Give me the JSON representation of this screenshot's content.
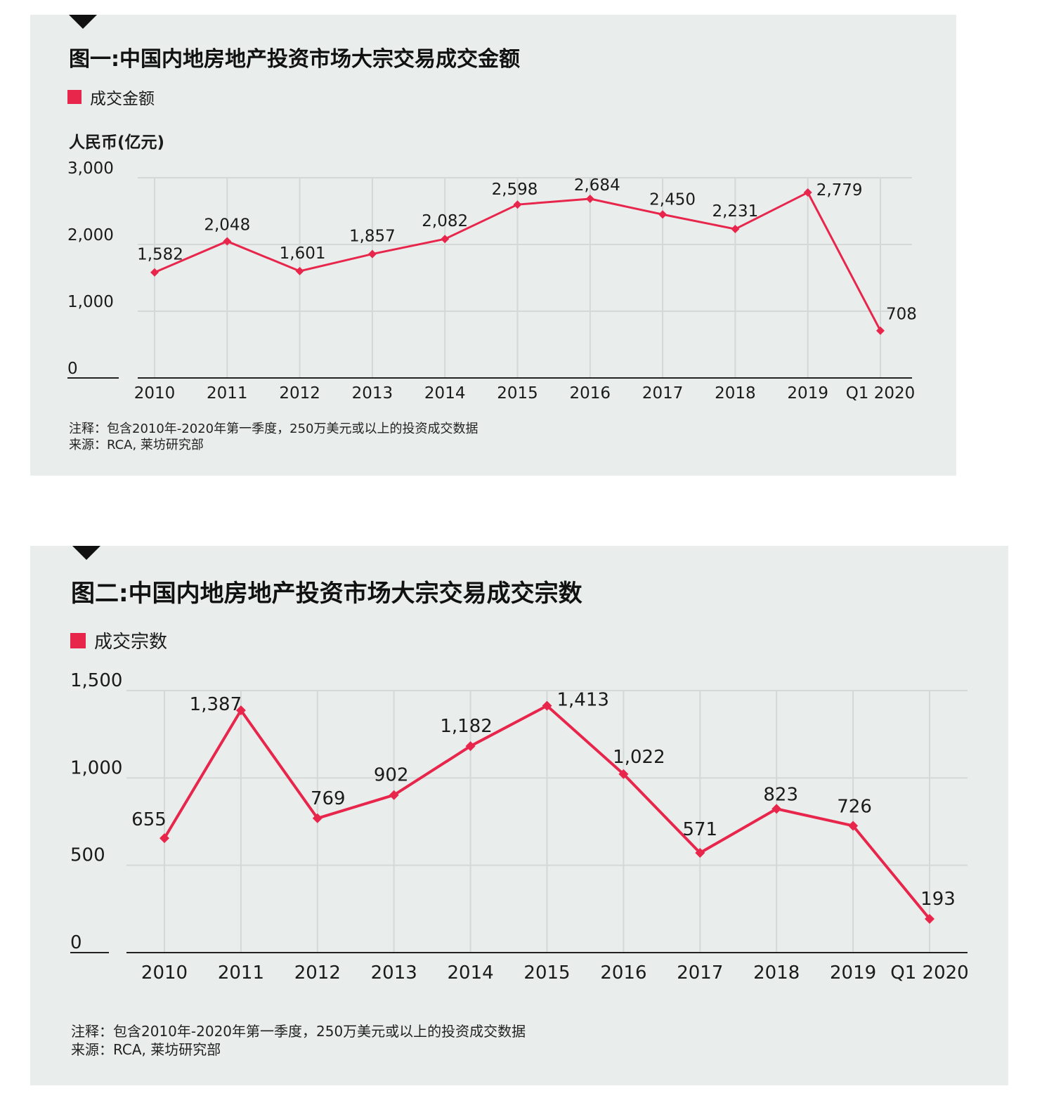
{
  "charts": [
    {
      "title": "图一:中国内地房地产投资市场大宗交易成交金额",
      "legend": "成交金额",
      "ylabel": "人民币(亿元)",
      "note": "注释：包含2010年-2020年第一季度，250万美元或以上的投资成交数据",
      "source": "来源：RCA, 莱坊研究部"
    },
    {
      "title": "图二:中国内地房地产投资市场大宗交易成交宗数",
      "legend": "成交宗数",
      "ylabel": "",
      "note": "注释：包含2010年-2020年第一季度，250万美元或以上的投资成交数据",
      "source": "来源：RCA, 莱坊研究部"
    }
  ],
  "colors": {
    "series": "#e8264c",
    "grid": "#d4d8d6",
    "axis": "#222222",
    "panel": "#e9eeed"
  },
  "chart_data": [
    {
      "type": "line",
      "title": "图一:中国内地房地产投资市场大宗交易成交金额",
      "ylabel": "人民币(亿元)",
      "categories": [
        "2010",
        "2011",
        "2012",
        "2013",
        "2014",
        "2015",
        "2016",
        "2017",
        "2018",
        "2019",
        "Q1 2020"
      ],
      "series": [
        {
          "name": "成交金额",
          "values": [
            1582,
            2048,
            1601,
            1857,
            2082,
            2598,
            2684,
            2450,
            2231,
            2779,
            708
          ],
          "labels": [
            "1,582",
            "2,048",
            "1,601",
            "1,857",
            "2,082",
            "2,598",
            "2,684",
            "2,450",
            "2,231",
            "2,779",
            "708"
          ]
        }
      ],
      "ylim": [
        0,
        3000
      ],
      "yticks": [
        0,
        1000,
        2000,
        3000
      ],
      "ytick_labels": [
        "0",
        "1,000",
        "2,000",
        "3,000"
      ],
      "grid": true,
      "legend_position": "top-left"
    },
    {
      "type": "line",
      "title": "图二:中国内地房地产投资市场大宗交易成交宗数",
      "ylabel": "",
      "categories": [
        "2010",
        "2011",
        "2012",
        "2013",
        "2014",
        "2015",
        "2016",
        "2017",
        "2018",
        "2019",
        "Q1 2020"
      ],
      "series": [
        {
          "name": "成交宗数",
          "values": [
            655,
            1387,
            769,
            902,
            1182,
            1413,
            1022,
            571,
            823,
            726,
            193
          ],
          "labels": [
            "655",
            "1,387",
            "769",
            "902",
            "1,182",
            "1,413",
            "1,022",
            "571",
            "823",
            "726",
            "193"
          ]
        }
      ],
      "ylim": [
        0,
        1500
      ],
      "yticks": [
        0,
        500,
        1000,
        1500
      ],
      "ytick_labels": [
        "0",
        "500",
        "1,000",
        "1,500"
      ],
      "grid": true,
      "legend_position": "top-left"
    }
  ]
}
